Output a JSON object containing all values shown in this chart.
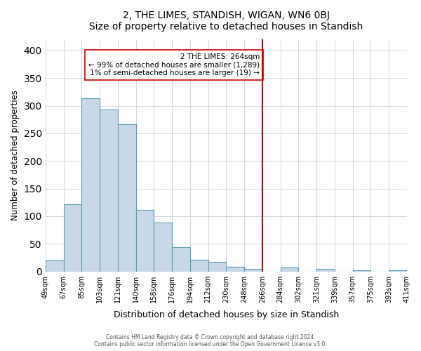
{
  "title": "2, THE LIMES, STANDISH, WIGAN, WN6 0BJ",
  "subtitle": "Size of property relative to detached houses in Standish",
  "xlabel": "Distribution of detached houses by size in Standish",
  "ylabel": "Number of detached properties",
  "bar_values": [
    20,
    122,
    313,
    293,
    266,
    111,
    89,
    44,
    21,
    17,
    8,
    5,
    0,
    7,
    0,
    5,
    0,
    2,
    0,
    2
  ],
  "bin_labels": [
    "49sqm",
    "67sqm",
    "85sqm",
    "103sqm",
    "121sqm",
    "140sqm",
    "158sqm",
    "176sqm",
    "194sqm",
    "212sqm",
    "230sqm",
    "248sqm",
    "266sqm",
    "284sqm",
    "302sqm",
    "321sqm",
    "339sqm",
    "357sqm",
    "375sqm",
    "393sqm",
    "411sqm"
  ],
  "bar_color": "#c8d8e8",
  "bar_edge_color": "#5a9ab5",
  "grid_color": "#d0d8e0",
  "vline_x": 12.0,
  "vline_color": "#cc0000",
  "annotation_text": "2 THE LIMES: 264sqm\n← 99% of detached houses are smaller (1,289)\n1% of semi-detached houses are larger (19) →",
  "annotation_box_color": "#ffffff",
  "annotation_box_edge": "#cc0000",
  "footer_line1": "Contains HM Land Registry data © Crown copyright and database right 2024.",
  "footer_line2": "Contains public sector information licensed under the Open Government Licence v3.0.",
  "ylim": [
    0,
    420
  ],
  "yticks": [
    0,
    50,
    100,
    150,
    200,
    250,
    300,
    350,
    400
  ],
  "figsize": [
    6.0,
    5.0
  ],
  "dpi": 100
}
